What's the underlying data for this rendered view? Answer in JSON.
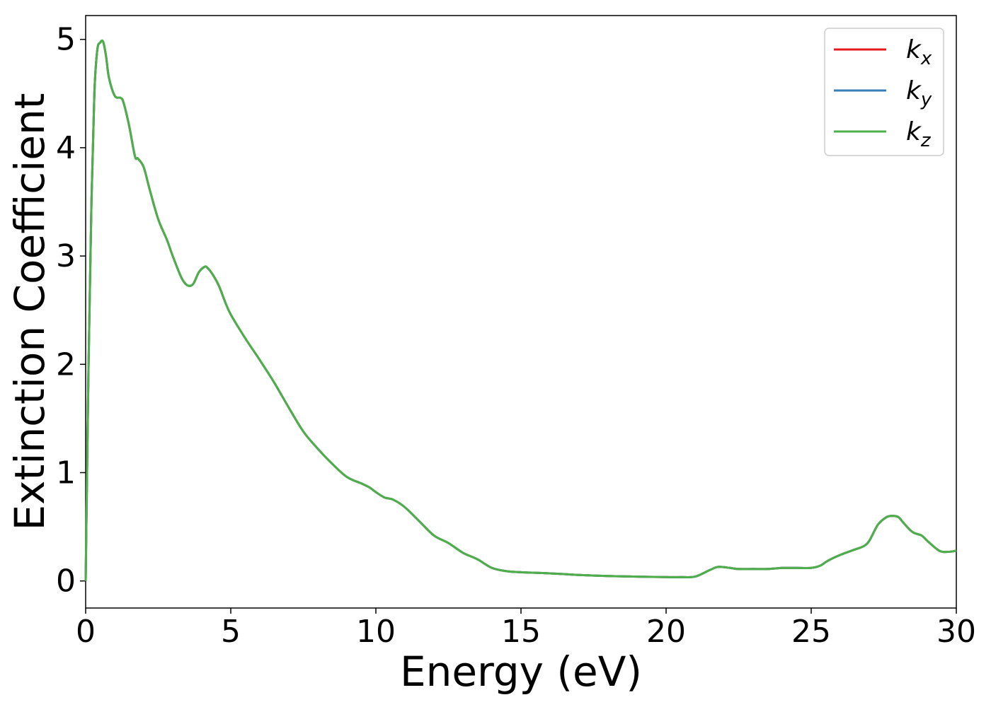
{
  "chart_data": {
    "type": "line",
    "title": "",
    "xlabel": "Energy (eV)",
    "ylabel": "Extinction Coefficient",
    "xlim": [
      0,
      30
    ],
    "ylim": [
      -0.25,
      5.22
    ],
    "xticks": [
      0,
      5,
      10,
      15,
      20,
      25,
      30
    ],
    "yticks": [
      0,
      1,
      2,
      3,
      4,
      5
    ],
    "grid": false,
    "legend_position": "top-right",
    "series": [
      {
        "name": "k_x",
        "legend_main": "k",
        "legend_sub": "x",
        "color": "#e41a1c"
      },
      {
        "name": "k_y",
        "legend_main": "k",
        "legend_sub": "y",
        "color": "#377eb8"
      },
      {
        "name": "k_z",
        "legend_main": "k",
        "legend_sub": "z",
        "color": "#4daf4a"
      }
    ],
    "note_series_identical": true,
    "x": [
      0.0,
      0.1,
      0.2,
      0.3,
      0.4,
      0.5,
      0.6,
      0.7,
      0.8,
      1.0,
      1.2,
      1.3,
      1.5,
      1.7,
      1.8,
      2.0,
      2.2,
      2.5,
      2.8,
      3.0,
      3.3,
      3.5,
      3.7,
      3.9,
      4.1,
      4.2,
      4.4,
      4.6,
      4.8,
      5.0,
      5.5,
      6.0,
      6.5,
      7.0,
      7.5,
      8.0,
      8.5,
      9.0,
      9.5,
      9.8,
      10.0,
      10.3,
      10.6,
      11.0,
      11.5,
      12.0,
      12.5,
      13.0,
      13.5,
      14.0,
      14.5,
      15.0,
      16.0,
      17.0,
      18.0,
      19.0,
      20.0,
      20.5,
      21.0,
      21.5,
      21.8,
      22.2,
      22.5,
      23.0,
      23.5,
      24.0,
      24.5,
      25.0,
      25.3,
      25.6,
      26.0,
      26.5,
      26.8,
      27.0,
      27.3,
      27.6,
      27.8,
      28.0,
      28.2,
      28.5,
      28.8,
      29.0,
      29.3,
      29.5,
      29.8,
      30.0
    ],
    "values": [
      0.0,
      2.0,
      3.5,
      4.5,
      4.9,
      4.97,
      4.98,
      4.85,
      4.65,
      4.48,
      4.46,
      4.42,
      4.2,
      3.92,
      3.9,
      3.82,
      3.62,
      3.34,
      3.15,
      3.0,
      2.8,
      2.73,
      2.74,
      2.85,
      2.9,
      2.89,
      2.82,
      2.72,
      2.58,
      2.46,
      2.24,
      2.04,
      1.83,
      1.6,
      1.38,
      1.22,
      1.08,
      0.96,
      0.9,
      0.86,
      0.82,
      0.77,
      0.75,
      0.68,
      0.55,
      0.42,
      0.35,
      0.26,
      0.2,
      0.12,
      0.09,
      0.08,
      0.07,
      0.055,
      0.045,
      0.04,
      0.035,
      0.035,
      0.04,
      0.1,
      0.13,
      0.12,
      0.11,
      0.11,
      0.11,
      0.12,
      0.12,
      0.12,
      0.14,
      0.19,
      0.24,
      0.29,
      0.32,
      0.37,
      0.52,
      0.59,
      0.6,
      0.59,
      0.53,
      0.45,
      0.42,
      0.37,
      0.3,
      0.27,
      0.27,
      0.28
    ]
  }
}
